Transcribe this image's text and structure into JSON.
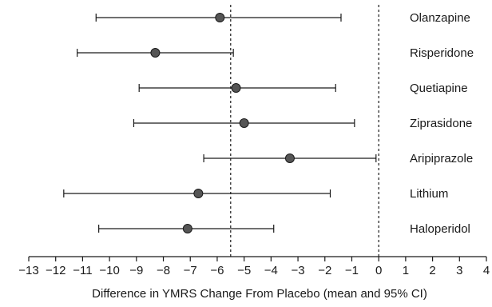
{
  "chart_data": {
    "type": "forest",
    "title": "",
    "xlabel": "Difference in YMRS Change From Placebo (mean and 95% CI)",
    "ylabel": "",
    "xlim": [
      -13,
      4
    ],
    "xticks": [
      -13,
      -12,
      -11,
      -10,
      -9,
      -8,
      -7,
      -6,
      -5,
      -4,
      -3,
      -2,
      -1,
      0,
      1,
      2,
      3,
      4
    ],
    "xtick_labels": [
      "−13",
      "−12",
      "−11",
      "−10",
      "−9",
      "−8",
      "−7",
      "−6",
      "−5",
      "−4",
      "−3",
      "−2",
      "−1",
      "0",
      "1",
      "2",
      "3",
      "4"
    ],
    "reference_lines": [
      -5.5,
      0
    ],
    "grid": false,
    "series": [
      {
        "label": "Olanzapine",
        "mean": -5.9,
        "lower": -10.5,
        "upper": -1.4
      },
      {
        "label": "Risperidone",
        "mean": -8.3,
        "lower": -11.2,
        "upper": -5.4
      },
      {
        "label": "Quetiapine",
        "mean": -5.3,
        "lower": -8.9,
        "upper": -1.6
      },
      {
        "label": "Ziprasidone",
        "mean": -5.0,
        "lower": -9.1,
        "upper": -0.9
      },
      {
        "label": "Aripiprazole",
        "mean": -3.3,
        "lower": -6.5,
        "upper": -0.1
      },
      {
        "label": "Lithium",
        "mean": -6.7,
        "lower": -11.7,
        "upper": -1.8
      },
      {
        "label": "Haloperidol",
        "mean": -7.1,
        "lower": -10.4,
        "upper": -3.9
      }
    ],
    "colors": {
      "marker_fill": "#555555",
      "line": "#1a1a1a"
    }
  }
}
